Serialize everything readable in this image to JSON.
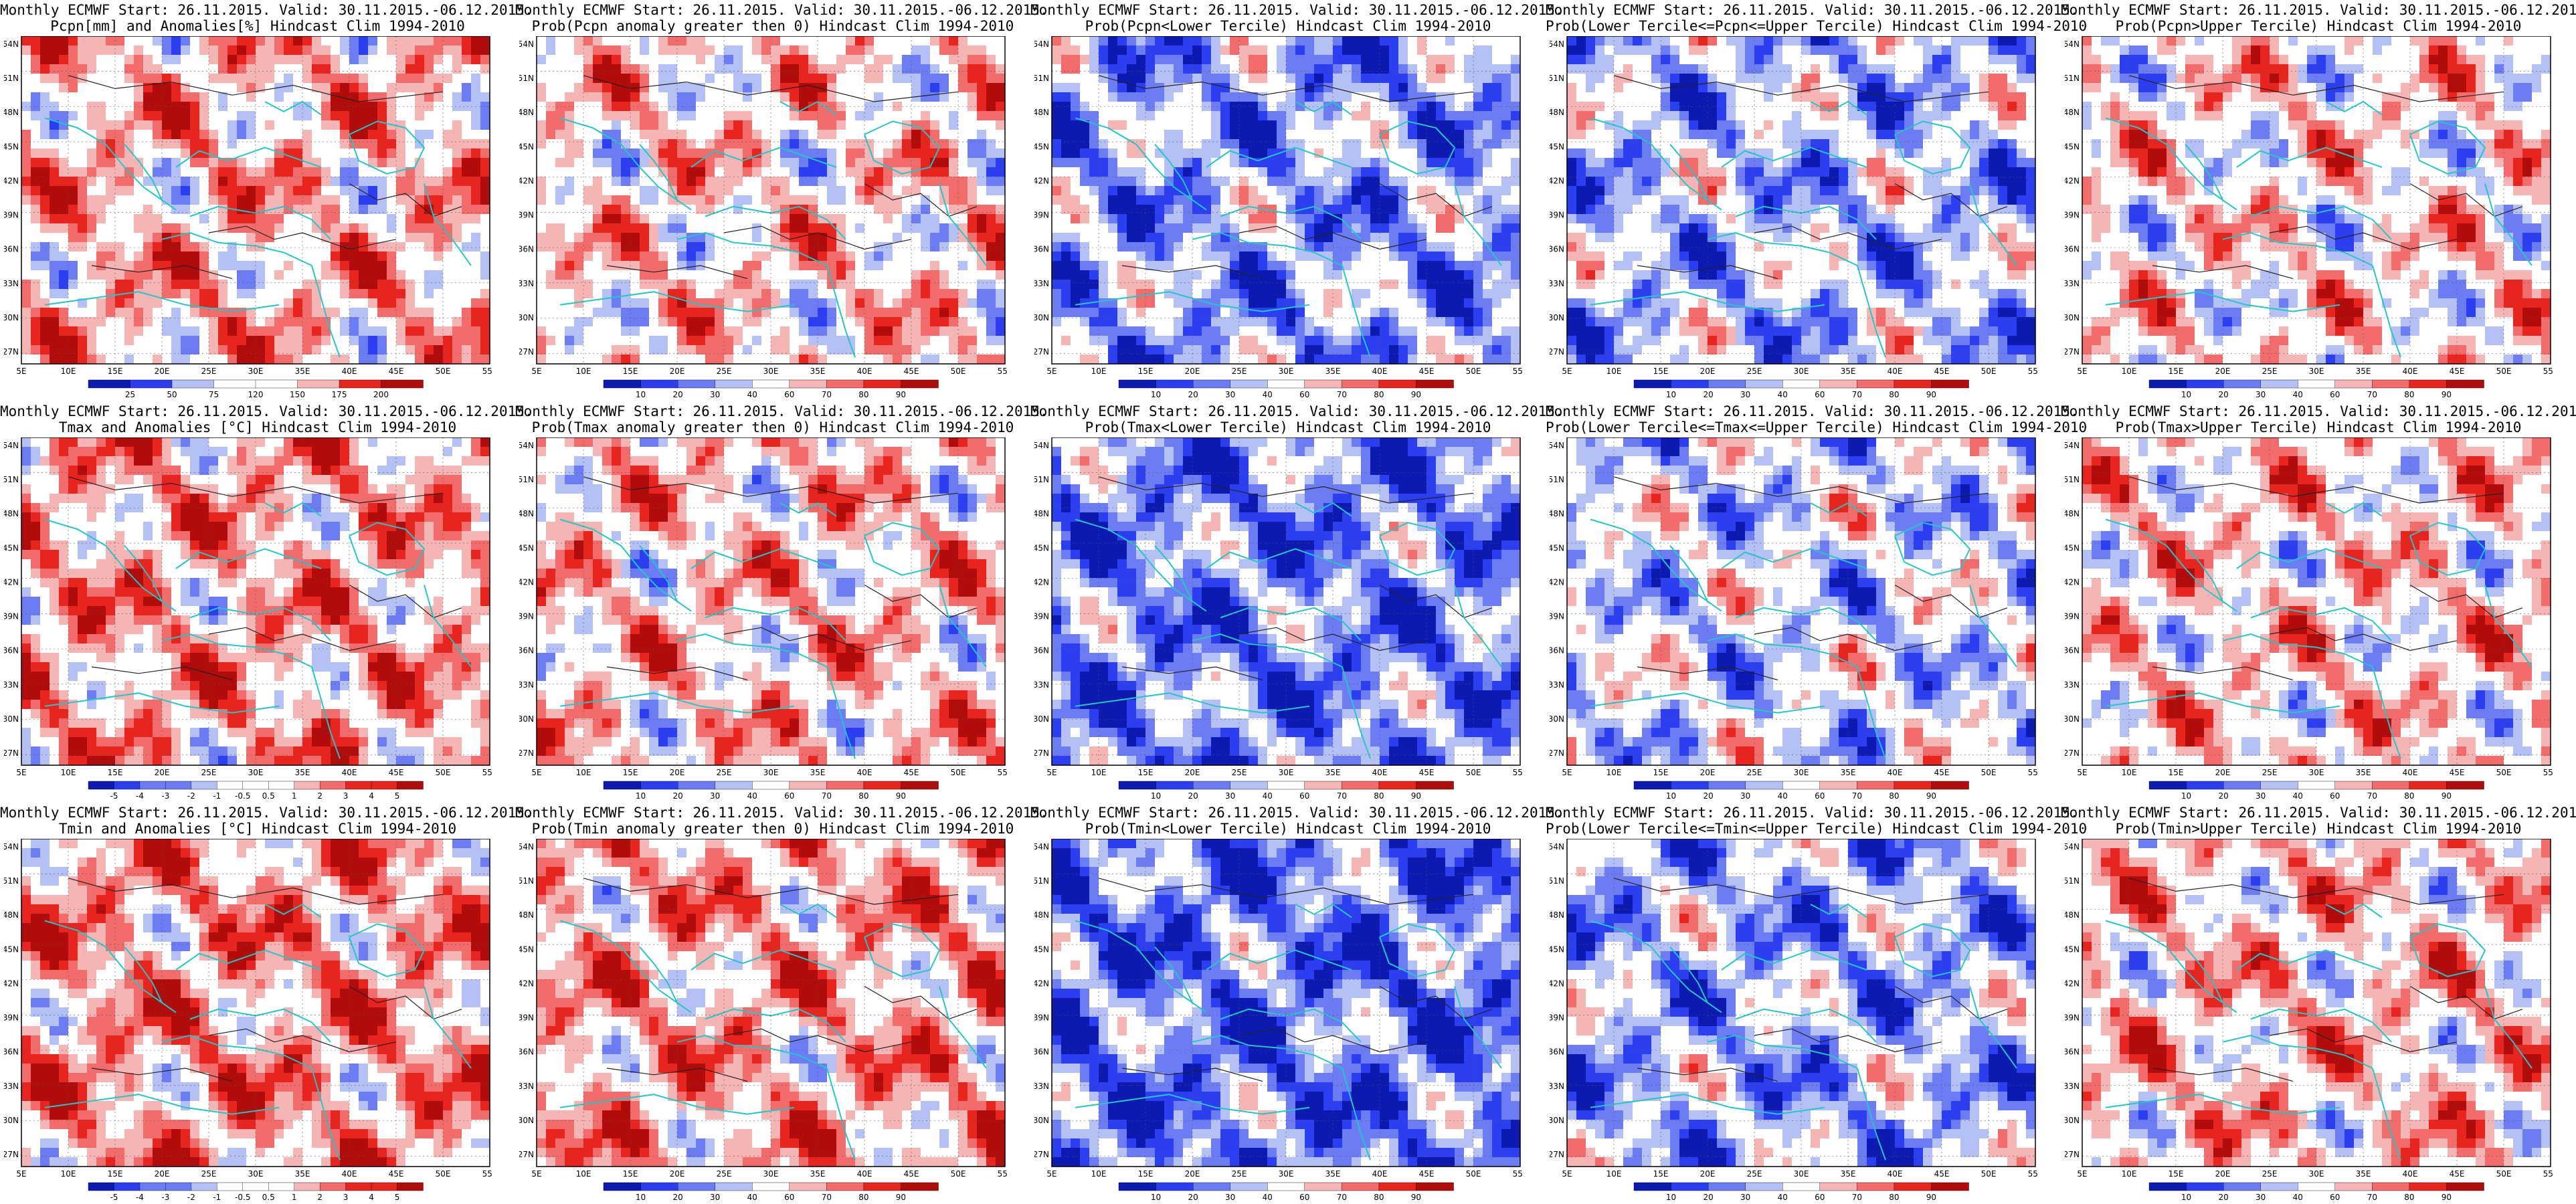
{
  "header_line": "Monthly ECMWF Start: 26.11.2015. Valid: 30.11.2015.-06.12.2015.",
  "lat_labels": [
    "54N",
    "51N",
    "48N",
    "45N",
    "42N",
    "39N",
    "36N",
    "33N",
    "30N",
    "27N"
  ],
  "lon_labels": [
    "5E",
    "10E",
    "15E",
    "20E",
    "25E",
    "30E",
    "35E",
    "40E",
    "45E",
    "50E",
    "55E"
  ],
  "colorbars": {
    "pcpn_anom": {
      "labels": [
        "25",
        "50",
        "75",
        "120",
        "150",
        "175",
        "200"
      ]
    },
    "prob": {
      "labels": [
        "10",
        "20",
        "30",
        "40",
        "60",
        "70",
        "80",
        "90"
      ]
    },
    "temp_anom": {
      "labels": [
        "-5",
        "-4",
        "-3",
        "-2",
        "-1",
        "-0.5",
        "0.5",
        "1",
        "2",
        "3",
        "4",
        "5"
      ]
    }
  },
  "palette": {
    "dark_blue": "#0c1ab0",
    "blue": "#2b3ff0",
    "mid_blue": "#6c7df3",
    "light_blue": "#b5c0f5",
    "white": "#ffffff",
    "light_red": "#f5b5b5",
    "mid_red": "#f26c6c",
    "red": "#e8241f",
    "dark_red": "#b00c0c",
    "coast": "#22c7c7",
    "contour": "#222222"
  },
  "panels": [
    {
      "id": "pcpn-anomaly",
      "line2": "Pcpn[mm] and Anomalies[%] Hindcast Clim 1994-2010",
      "bias": 0.25,
      "cbar": "pcpn_anom",
      "row": 0,
      "col": 0
    },
    {
      "id": "pcpn-prob-gt0",
      "line2": "Prob(Pcpn anomaly greater then 0) Hindcast Clim 1994-2010",
      "bias": 0.15,
      "cbar": "prob",
      "row": 0,
      "col": 1
    },
    {
      "id": "pcpn-prob-lower",
      "line2": "Prob(Pcpn<Lower Tercile) Hindcast Clim 1994-2010",
      "bias": -0.35,
      "cbar": "prob",
      "row": 0,
      "col": 2
    },
    {
      "id": "pcpn-prob-middle",
      "line2": "Prob(Lower Tercile<=Pcpn<=Upper Tercile) Hindcast Clim 1994-2010",
      "bias": -0.25,
      "cbar": "prob",
      "row": 0,
      "col": 3
    },
    {
      "id": "pcpn-prob-upper",
      "line2": "Prob(Pcpn>Upper Tercile) Hindcast Clim 1994-2010",
      "bias": 0.1,
      "cbar": "prob",
      "row": 0,
      "col": 4
    },
    {
      "id": "tmax-anomaly",
      "line2": "Tmax and Anomalies [°C] Hindcast Clim 1994-2010",
      "bias": 0.3,
      "cbar": "temp_anom",
      "row": 1,
      "col": 0
    },
    {
      "id": "tmax-prob-gt0",
      "line2": "Prob(Tmax anomaly greater then 0) Hindcast Clim 1994-2010",
      "bias": 0.2,
      "cbar": "prob",
      "row": 1,
      "col": 1
    },
    {
      "id": "tmax-prob-lower",
      "line2": "Prob(Tmax<Lower Tercile) Hindcast Clim 1994-2010",
      "bias": -0.45,
      "cbar": "prob",
      "row": 1,
      "col": 2
    },
    {
      "id": "tmax-prob-middle",
      "line2": "Prob(Lower Tercile<=Tmax<=Upper Tercile) Hindcast Clim 1994-2010",
      "bias": -0.15,
      "cbar": "prob",
      "row": 1,
      "col": 3
    },
    {
      "id": "tmax-prob-upper",
      "line2": "Prob(Tmax>Upper Tercile) Hindcast Clim 1994-2010",
      "bias": 0.15,
      "cbar": "prob",
      "row": 1,
      "col": 4
    },
    {
      "id": "tmin-anomaly",
      "line2": "Tmin and Anomalies [°C] Hindcast Clim 1994-2010",
      "bias": 0.35,
      "cbar": "temp_anom",
      "row": 2,
      "col": 0
    },
    {
      "id": "tmin-prob-gt0",
      "line2": "Prob(Tmin anomaly greater then 0) Hindcast Clim 1994-2010",
      "bias": 0.3,
      "cbar": "prob",
      "row": 2,
      "col": 1
    },
    {
      "id": "tmin-prob-lower",
      "line2": "Prob(Tmin<Lower Tercile) Hindcast Clim 1994-2010",
      "bias": -0.5,
      "cbar": "prob",
      "row": 2,
      "col": 2
    },
    {
      "id": "tmin-prob-middle",
      "line2": "Prob(Lower Tercile<=Tmin<=Upper Tercile) Hindcast Clim 1994-2010",
      "bias": -0.3,
      "cbar": "prob",
      "row": 2,
      "col": 3
    },
    {
      "id": "tmin-prob-upper",
      "line2": "Prob(Tmin>Upper Tercile) Hindcast Clim 1994-2010",
      "bias": 0.2,
      "cbar": "prob",
      "row": 2,
      "col": 4
    }
  ]
}
